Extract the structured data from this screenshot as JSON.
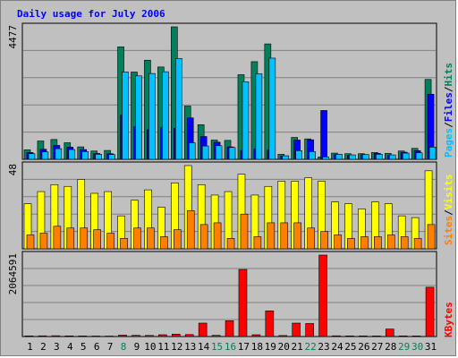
{
  "chart_data": {
    "type": "bar",
    "title": "Daily usage for July 2006",
    "categories": [
      "1",
      "2",
      "3",
      "4",
      "5",
      "6",
      "7",
      "8",
      "9",
      "10",
      "11",
      "12",
      "13",
      "14",
      "15",
      "16",
      "17",
      "18",
      "19",
      "20",
      "21",
      "22",
      "23",
      "24",
      "25",
      "26",
      "27",
      "28",
      "29",
      "30",
      "31"
    ],
    "weekend_days": [
      8,
      15,
      16,
      22,
      29,
      30
    ],
    "panels": [
      {
        "id": "requests",
        "max_label": "4477",
        "ylim": [
          0,
          4477
        ],
        "series": [
          {
            "name": "Hits",
            "color": "#00805c",
            "values": [
              320,
              620,
              670,
              560,
              420,
              280,
              300,
              3800,
              2950,
              3350,
              3120,
              4477,
              1800,
              1170,
              650,
              640,
              2860,
              3300,
              3900,
              170,
              740,
              690,
              80,
              210,
              190,
              190,
              230,
              200,
              280,
              370,
              2700
            ]
          },
          {
            "name": "Files",
            "color": "#0000ff",
            "values": [
              230,
              340,
              470,
              410,
              330,
              200,
              190,
              1490,
              1100,
              1000,
              1070,
              1050,
              1400,
              770,
              580,
              420,
              300,
              350,
              310,
              110,
              650,
              660,
              1650,
              160,
              140,
              160,
              200,
              130,
              240,
              290,
              2200
            ]
          },
          {
            "name": "Pages",
            "color": "#00c0ff",
            "values": [
              190,
              250,
              360,
              330,
              260,
              170,
              160,
              2950,
              2820,
              2900,
              2960,
              3410,
              560,
              450,
              460,
              400,
              2620,
              2890,
              3420,
              120,
              290,
              260,
              80,
              170,
              150,
              160,
              170,
              150,
              210,
              220,
              410
            ]
          }
        ]
      },
      {
        "id": "visits",
        "max_label": "48",
        "ylim": [
          0,
          48
        ],
        "series": [
          {
            "name": "Visits",
            "color": "#ffff00",
            "values": [
              26,
              33,
              37,
              36,
              40,
              32,
              33,
              19,
              28,
              34,
              24,
              38,
              48,
              37,
              31,
              33,
              43,
              31,
              36,
              39,
              39,
              41,
              39,
              27,
              26,
              23,
              27,
              26,
              19,
              18,
              45
            ]
          },
          {
            "name": "Sites",
            "color": "#ff8000",
            "values": [
              8,
              9,
              13,
              12,
              12,
              11,
              9,
              6,
              12,
              12,
              7,
              11,
              22,
              14,
              15,
              6,
              20,
              7,
              15,
              15,
              15,
              12,
              10,
              8,
              6,
              7,
              7,
              8,
              7,
              6,
              14
            ]
          }
        ]
      },
      {
        "id": "kbytes",
        "max_label": "2064591",
        "ylim": [
          0,
          2064591
        ],
        "series": [
          {
            "name": "KBytes",
            "color": "#ff0000",
            "values": [
              15000,
              18000,
              20000,
              16000,
              14000,
              12000,
              11000,
              35000,
              30000,
              28000,
              45000,
              60000,
              50000,
              340000,
              30000,
              400000,
              1700000,
              45000,
              650000,
              25000,
              340000,
              330000,
              2064591,
              18000,
              16000,
              15000,
              14000,
              190000,
              16000,
              14000,
              1250000
            ]
          }
        ]
      }
    ],
    "legend": [
      {
        "name": "Pages",
        "color": "#00c0ff"
      },
      {
        "name": "/",
        "color": "#000000"
      },
      {
        "name": "Files",
        "color": "#0000ff"
      },
      {
        "name": "/",
        "color": "#000000"
      },
      {
        "name": "Hits",
        "color": "#00805c"
      },
      {
        "name": "Sites",
        "color": "#ff8000"
      },
      {
        "name": "/",
        "color": "#000000"
      },
      {
        "name": "Visits",
        "color": "#ffff00"
      },
      {
        "name": "KBytes",
        "color": "#ff0000"
      }
    ],
    "colors": {
      "background": "#c0c0c0",
      "grid": "#808080",
      "title": "#0000ff",
      "weekday_label": "#000000",
      "weekend_label": "#00805c"
    }
  }
}
